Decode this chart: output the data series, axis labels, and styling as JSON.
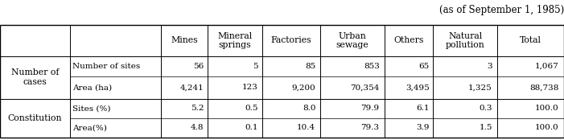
{
  "caption": "(as of September 1, 1985)",
  "caption_fontsize": 8.5,
  "font_size": 7.8,
  "background_color": "#ffffff",
  "border_color": "#000000",
  "col_headers": [
    "Mines",
    "Mineral\nsprings",
    "Factories",
    "Urban\nsewage",
    "Others",
    "Natural\npollution",
    "Total"
  ],
  "group1_label": "Number of\ncases",
  "group1_row1_label": "Number of sites",
  "group1_row2_label": "Area (ha)",
  "group1_row1_vals": [
    "56",
    "5",
    "85",
    "853",
    "65",
    "3",
    "1,067"
  ],
  "group1_row2_vals": [
    "4,241",
    "123",
    "9,200",
    "70,354",
    "3,495",
    "1,325",
    "88,738"
  ],
  "group2_label": "Constitution",
  "group2_row1_label": "Sites (%)",
  "group2_row2_label": "Area(%)",
  "group2_row1_vals": [
    "5.2",
    "0.5",
    "8.0",
    "79.9",
    "6.1",
    "0.3",
    "100.0"
  ],
  "group2_row2_vals": [
    "4.8",
    "0.1",
    "10.4",
    "79.3",
    "3.9",
    "1.5",
    "100.0"
  ]
}
